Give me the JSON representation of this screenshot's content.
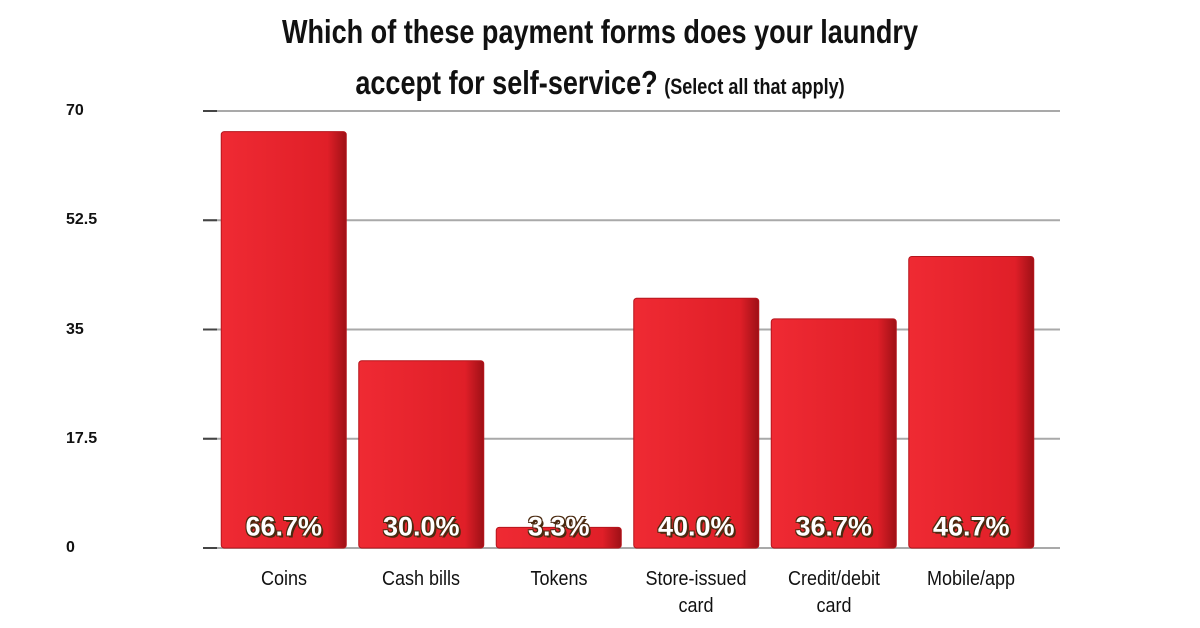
{
  "chart_data": {
    "type": "bar",
    "title": "Which of these payment forms does your laundry accept for self-service?",
    "subtitle": "(Select all that apply)",
    "categories": [
      "Coins",
      "Cash bills",
      "Tokens",
      "Store-issued card",
      "Credit/debit card",
      "Mobile/app"
    ],
    "values": [
      66.7,
      30.0,
      3.3,
      40.0,
      36.7,
      46.7
    ],
    "value_labels": [
      "66.7%",
      "30.0%",
      "3.3%",
      "40.0%",
      "36.7%",
      "46.7%"
    ],
    "color": "#e8212b",
    "ylim": [
      0,
      70
    ],
    "yticks": [
      0,
      17.5,
      35,
      52.5,
      70
    ],
    "grid": true
  }
}
